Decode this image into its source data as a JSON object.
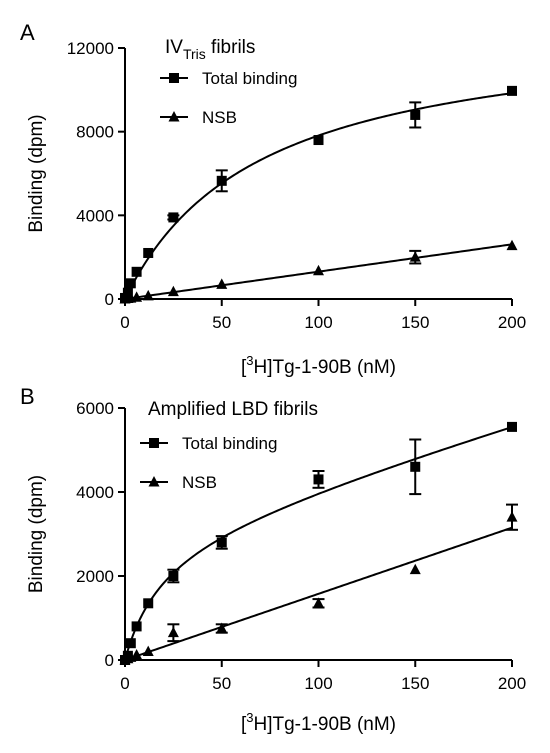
{
  "chart_data": [
    {
      "type": "scatter",
      "panel_label": "A",
      "title_main": "IV",
      "title_sub": "Tris",
      "title_rest": " fibrils",
      "xlabel_pre": "[",
      "xlabel_sup": "3",
      "xlabel_post": "H]Tg-1-90B (nM)",
      "ylabel": "Binding (dpm)",
      "xlim": [
        0,
        200
      ],
      "ylim": [
        0,
        12000
      ],
      "xticks": [
        "0",
        "50",
        "100",
        "150",
        "200"
      ],
      "yticks": [
        "0",
        "4000",
        "8000",
        "12000"
      ],
      "legend_placement": "top-left",
      "series": [
        {
          "name": "Total binding",
          "marker": "square",
          "x": [
            0,
            1.5,
            3,
            6,
            12,
            25,
            50,
            100,
            150,
            200
          ],
          "y": [
            50,
            300,
            750,
            1300,
            2200,
            3900,
            5650,
            7600,
            8800,
            9950
          ],
          "err": [
            0,
            0,
            0,
            0,
            0,
            100,
            500,
            0,
            600,
            0
          ],
          "fit": "hyperbolic"
        },
        {
          "name": "NSB",
          "marker": "triangle",
          "x": [
            0,
            1.5,
            3,
            6,
            12,
            25,
            50,
            100,
            150,
            200
          ],
          "y": [
            0,
            20,
            40,
            80,
            150,
            350,
            700,
            1350,
            2000,
            2550
          ],
          "err": [
            0,
            0,
            0,
            0,
            0,
            0,
            0,
            0,
            300,
            0
          ],
          "fit": "linear"
        }
      ]
    },
    {
      "type": "scatter",
      "panel_label": "B",
      "title_main": "Amplified LBD fibrils",
      "title_sub": "",
      "title_rest": "",
      "xlabel_pre": "[",
      "xlabel_sup": "3",
      "xlabel_post": "H]Tg-1-90B (nM)",
      "ylabel": "Binding (dpm)",
      "xlim": [
        0,
        200
      ],
      "ylim": [
        0,
        6000
      ],
      "xticks": [
        "0",
        "50",
        "100",
        "150",
        "200"
      ],
      "yticks": [
        "0",
        "2000",
        "4000",
        "6000"
      ],
      "legend_placement": "top-left",
      "series": [
        {
          "name": "Total binding",
          "marker": "square",
          "x": [
            0,
            1.5,
            3,
            6,
            12,
            25,
            50,
            100,
            150,
            200
          ],
          "y": [
            0,
            100,
            400,
            800,
            1350,
            2000,
            2800,
            4300,
            4600,
            5550
          ],
          "err": [
            0,
            0,
            0,
            0,
            0,
            150,
            150,
            200,
            650,
            0
          ],
          "fit": "hyperbolic+linear"
        },
        {
          "name": "NSB",
          "marker": "triangle",
          "x": [
            0,
            1.5,
            3,
            6,
            12,
            25,
            50,
            100,
            150,
            200
          ],
          "y": [
            0,
            30,
            60,
            120,
            200,
            650,
            750,
            1350,
            2150,
            3400
          ],
          "err": [
            0,
            0,
            0,
            0,
            0,
            200,
            100,
            100,
            0,
            300
          ],
          "fit": "linear"
        }
      ]
    }
  ]
}
